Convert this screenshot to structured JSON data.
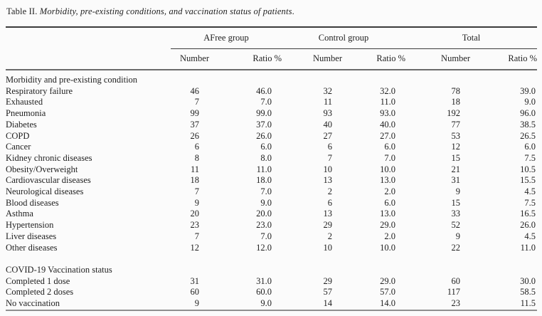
{
  "caption": {
    "label": "Table II.",
    "title_italic": "Morbidity, pre-existing conditions, and vaccination status of patients",
    "suffix": "."
  },
  "columns": {
    "groups": [
      "AFree group",
      "Control group",
      "Total"
    ],
    "sub": [
      "Number",
      "Ratio %"
    ]
  },
  "table": {
    "sections": [
      {
        "header": "Morbidity and pre-existing condition",
        "rows": [
          {
            "label": "Respiratory failure",
            "values": [
              "46",
              "46.0",
              "32",
              "32.0",
              "78",
              "39.0"
            ]
          },
          {
            "label": "Exhausted",
            "values": [
              "7",
              "7.0",
              "11",
              "11.0",
              "18",
              "9.0"
            ]
          },
          {
            "label": "Pneumonia",
            "values": [
              "99",
              "99.0",
              "93",
              "93.0",
              "192",
              "96.0"
            ]
          },
          {
            "label": "Diabetes",
            "values": [
              "37",
              "37.0",
              "40",
              "40.0",
              "77",
              "38.5"
            ]
          },
          {
            "label": "COPD",
            "values": [
              "26",
              "26.0",
              "27",
              "27.0",
              "53",
              "26.5"
            ]
          },
          {
            "label": "Cancer",
            "values": [
              "6",
              "6.0",
              "6",
              "6.0",
              "12",
              "6.0"
            ]
          },
          {
            "label": "Kidney chronic diseases",
            "values": [
              "8",
              "8.0",
              "7",
              "7.0",
              "15",
              "7.5"
            ]
          },
          {
            "label": "Obesity/Overweight",
            "values": [
              "11",
              "11.0",
              "10",
              "10.0",
              "21",
              "10.5"
            ]
          },
          {
            "label": "Cardiovascular diseases",
            "values": [
              "18",
              "18.0",
              "13",
              "13.0",
              "31",
              "15.5"
            ]
          },
          {
            "label": "Neurological diseases",
            "values": [
              "7",
              "7.0",
              "2",
              "2.0",
              "9",
              "4.5"
            ]
          },
          {
            "label": "Blood diseases",
            "values": [
              "9",
              "9.0",
              "6",
              "6.0",
              "15",
              "7.5"
            ]
          },
          {
            "label": "Asthma",
            "values": [
              "20",
              "20.0",
              "13",
              "13.0",
              "33",
              "16.5"
            ]
          },
          {
            "label": "Hypertension",
            "values": [
              "23",
              "23.0",
              "29",
              "29.0",
              "52",
              "26.0"
            ]
          },
          {
            "label": "Liver diseases",
            "values": [
              "7",
              "7.0",
              "2",
              "2.0",
              "9",
              "4.5"
            ]
          },
          {
            "label": "Other diseases",
            "values": [
              "12",
              "12.0",
              "10",
              "10.0",
              "22",
              "11.0"
            ]
          }
        ]
      },
      {
        "header": "COVID-19 Vaccination status",
        "rows": [
          {
            "label": "Completed 1 dose",
            "values": [
              "31",
              "31.0",
              "29",
              "29.0",
              "60",
              "30.0"
            ]
          },
          {
            "label": "Completed 2 doses",
            "values": [
              "60",
              "60.0",
              "57",
              "57.0",
              "117",
              "58.5"
            ]
          },
          {
            "label": "No vaccination",
            "values": [
              "9",
              "9.0",
              "14",
              "14.0",
              "23",
              "11.5"
            ]
          }
        ]
      }
    ]
  },
  "colors": {
    "background": "#fbfbfb",
    "text": "#1f1f1f",
    "rule_top": "#3b3b3b",
    "rule_header_bottom": "#6b6b6b",
    "rule_table_bottom": "#8f8f8f"
  }
}
